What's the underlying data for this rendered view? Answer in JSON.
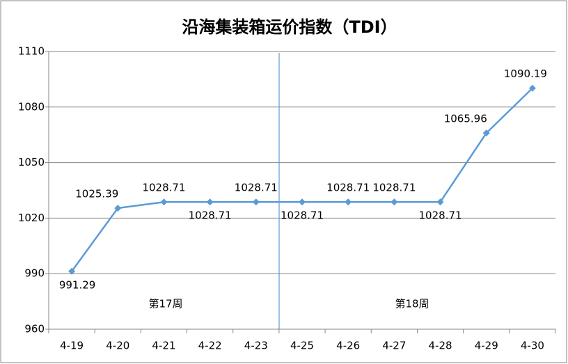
{
  "chart_data": {
    "type": "line",
    "title": "沿海集装箱运价指数（TDI）",
    "categories": [
      "4-19",
      "4-20",
      "4-21",
      "4-22",
      "4-23",
      "4-25",
      "4-26",
      "4-27",
      "4-28",
      "4-29",
      "4-30"
    ],
    "series": [
      {
        "name": "TDI",
        "color": "#5b9bd5",
        "values": [
          991.29,
          1025.39,
          1028.71,
          1028.71,
          1028.71,
          1028.71,
          1028.71,
          1028.71,
          1028.71,
          1065.96,
          1090.19
        ]
      }
    ],
    "ylim": [
      960,
      1110
    ],
    "yticks": [
      960,
      990,
      1020,
      1050,
      1080,
      1110
    ],
    "grid": true,
    "annotations": [
      "第17周",
      "第18周"
    ]
  }
}
